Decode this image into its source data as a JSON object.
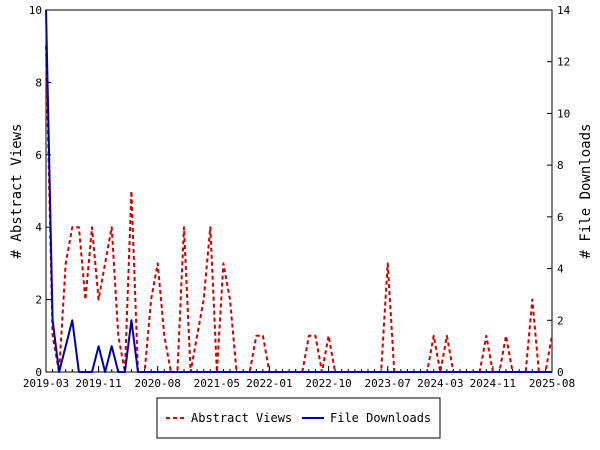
{
  "chart_data": {
    "type": "line",
    "ylabel_left": "# Abstract Views",
    "ylabel_right": "# File Downloads",
    "ylim_left": [
      0,
      10
    ],
    "ylim_right": [
      0,
      14
    ],
    "yticks_left": [
      0,
      2,
      4,
      6,
      8,
      10
    ],
    "yticks_right": [
      0,
      2,
      4,
      6,
      8,
      10,
      12,
      14
    ],
    "x_start": "2019-03",
    "x_end": "2025-08",
    "xtick_labels": [
      "2019-03",
      "2019-11",
      "2020-08",
      "2021-05",
      "2022-01",
      "2022-10",
      "2023-07",
      "2024-03",
      "2024-11",
      "2025-08"
    ],
    "grid": false,
    "legend_position": "bottom",
    "series": [
      {
        "name": "Abstract Views",
        "axis": "left",
        "color": "#cc0000",
        "dash": true,
        "points": [
          [
            "2019-03",
            9
          ],
          [
            "2019-04",
            1
          ],
          [
            "2019-05",
            0
          ],
          [
            "2019-06",
            3
          ],
          [
            "2019-07",
            4
          ],
          [
            "2019-08",
            4
          ],
          [
            "2019-09",
            2
          ],
          [
            "2019-10",
            4
          ],
          [
            "2019-11",
            2
          ],
          [
            "2019-12",
            3
          ],
          [
            "2020-01",
            4
          ],
          [
            "2020-02",
            1
          ],
          [
            "2020-03",
            0
          ],
          [
            "2020-04",
            5
          ],
          [
            "2020-05",
            0
          ],
          [
            "2020-06",
            0
          ],
          [
            "2020-07",
            2
          ],
          [
            "2020-08",
            3
          ],
          [
            "2020-09",
            1
          ],
          [
            "2020-10",
            0
          ],
          [
            "2020-11",
            0
          ],
          [
            "2020-12",
            4
          ],
          [
            "2021-01",
            0
          ],
          [
            "2021-02",
            1
          ],
          [
            "2021-03",
            2
          ],
          [
            "2021-04",
            4
          ],
          [
            "2021-05",
            0
          ],
          [
            "2021-06",
            3
          ],
          [
            "2021-07",
            2
          ],
          [
            "2021-08",
            0
          ],
          [
            "2021-09",
            0
          ],
          [
            "2021-10",
            0
          ],
          [
            "2021-11",
            1
          ],
          [
            "2021-12",
            1
          ],
          [
            "2022-01",
            0
          ],
          [
            "2022-02",
            0
          ],
          [
            "2022-03",
            0
          ],
          [
            "2022-04",
            0
          ],
          [
            "2022-05",
            0
          ],
          [
            "2022-06",
            0
          ],
          [
            "2022-07",
            1
          ],
          [
            "2022-08",
            1
          ],
          [
            "2022-09",
            0
          ],
          [
            "2022-10",
            1
          ],
          [
            "2022-11",
            0
          ],
          [
            "2022-12",
            0
          ],
          [
            "2023-01",
            0
          ],
          [
            "2023-02",
            0
          ],
          [
            "2023-03",
            0
          ],
          [
            "2023-04",
            0
          ],
          [
            "2023-05",
            0
          ],
          [
            "2023-06",
            0
          ],
          [
            "2023-07",
            3
          ],
          [
            "2023-08",
            0
          ],
          [
            "2023-09",
            0
          ],
          [
            "2023-10",
            0
          ],
          [
            "2023-11",
            0
          ],
          [
            "2023-12",
            0
          ],
          [
            "2024-01",
            0
          ],
          [
            "2024-02",
            1
          ],
          [
            "2024-03",
            0
          ],
          [
            "2024-04",
            1
          ],
          [
            "2024-05",
            0
          ],
          [
            "2024-06",
            0
          ],
          [
            "2024-07",
            0
          ],
          [
            "2024-08",
            0
          ],
          [
            "2024-09",
            0
          ],
          [
            "2024-10",
            1
          ],
          [
            "2024-11",
            0
          ],
          [
            "2024-12",
            0
          ],
          [
            "2025-01",
            1
          ],
          [
            "2025-02",
            0
          ],
          [
            "2025-03",
            0
          ],
          [
            "2025-04",
            0
          ],
          [
            "2025-05",
            2
          ],
          [
            "2025-06",
            0
          ],
          [
            "2025-07",
            0
          ],
          [
            "2025-08",
            1
          ]
        ]
      },
      {
        "name": "File Downloads",
        "axis": "right",
        "color": "#0000aa",
        "dash": false,
        "points": [
          [
            "2019-03",
            14
          ],
          [
            "2019-04",
            2
          ],
          [
            "2019-05",
            0
          ],
          [
            "2019-06",
            1
          ],
          [
            "2019-07",
            2
          ],
          [
            "2019-08",
            0
          ],
          [
            "2019-09",
            0
          ],
          [
            "2019-10",
            0
          ],
          [
            "2019-11",
            1
          ],
          [
            "2019-12",
            0
          ],
          [
            "2020-01",
            1
          ],
          [
            "2020-02",
            0
          ],
          [
            "2020-03",
            0
          ],
          [
            "2020-04",
            2
          ],
          [
            "2020-05",
            0
          ],
          [
            "2020-06",
            0
          ],
          [
            "2025-08",
            0
          ]
        ]
      }
    ]
  }
}
